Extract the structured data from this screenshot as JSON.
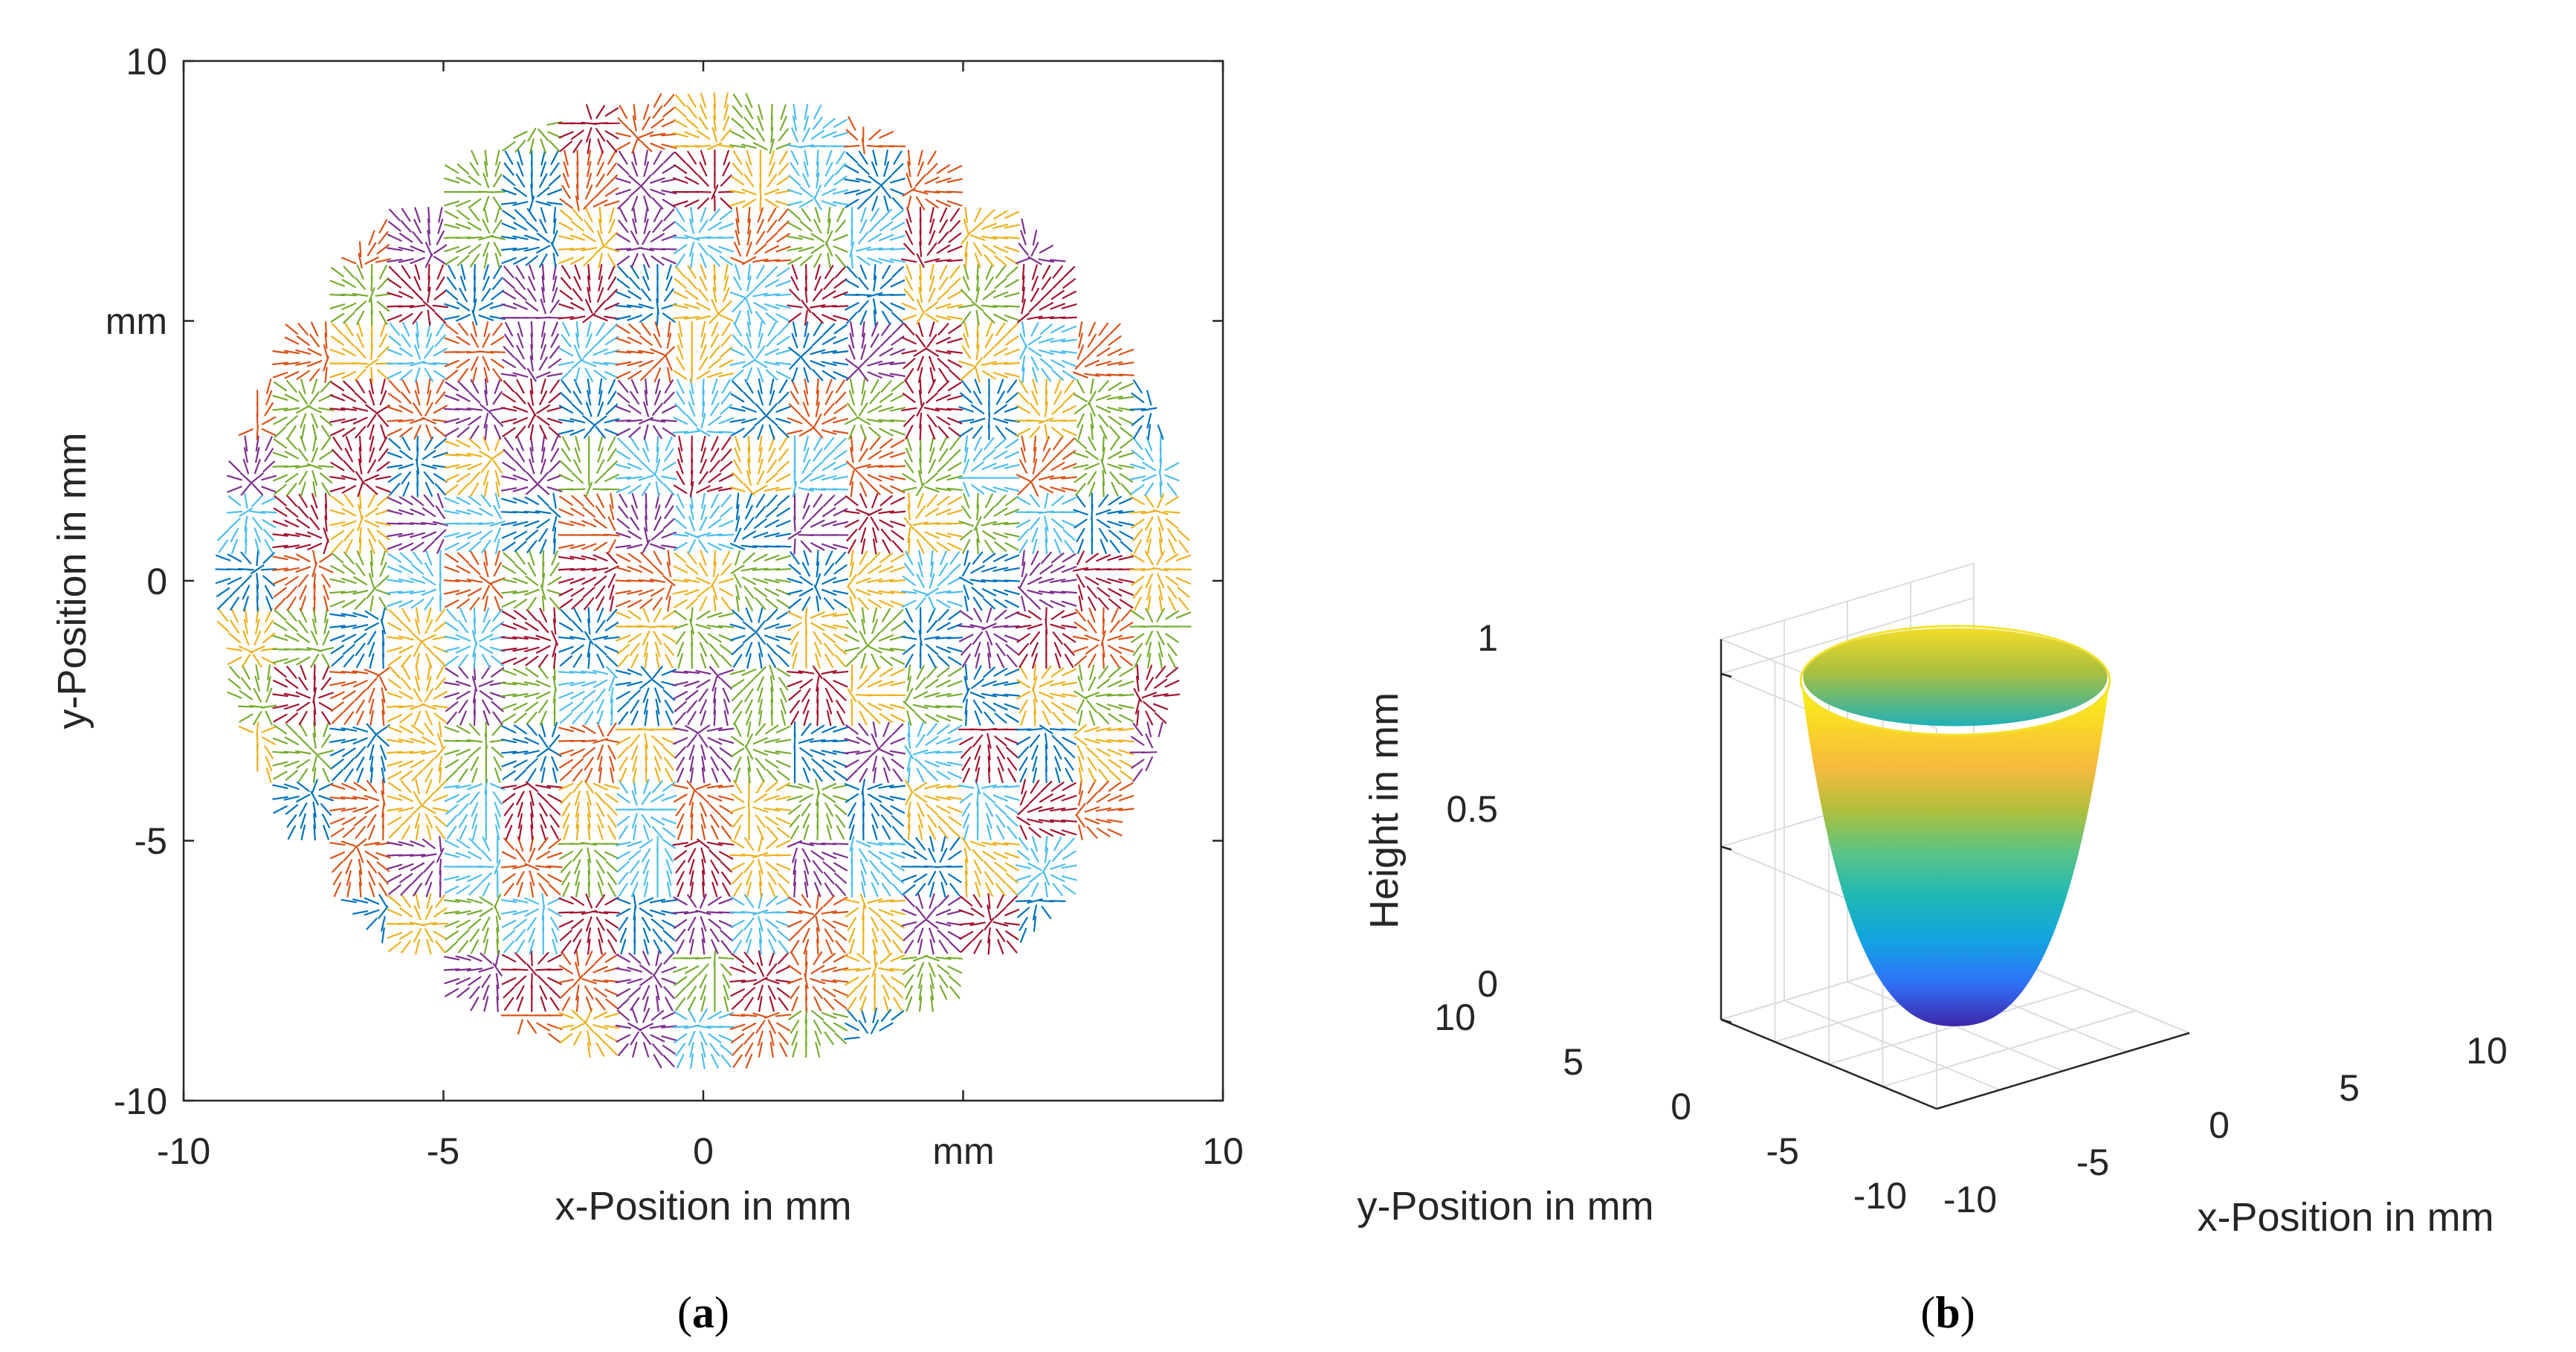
{
  "chart_data": [
    {
      "panel": "(a)",
      "type": "quiver",
      "title": "",
      "xlabel": "x-Position in mm",
      "ylabel": "y-Position in mm",
      "xlim": [
        -10,
        10
      ],
      "ylim": [
        -10,
        10
      ],
      "xticks": [
        -10,
        -5,
        0,
        5,
        10
      ],
      "xtick_labels": [
        "-10",
        "-5",
        "0",
        "mm",
        "10"
      ],
      "yticks": [
        -10,
        -5,
        0,
        5,
        10
      ],
      "ytick_labels": [
        "-10",
        "-5",
        "0",
        "mm",
        "10"
      ],
      "aperture_radius": 9.3,
      "patch_size": 1.1,
      "series_colors": [
        "#0072BD",
        "#D95319",
        "#EDB120",
        "#7E2F8E",
        "#77AC30",
        "#4DBEEE",
        "#A2142F"
      ],
      "grid": false
    },
    {
      "panel": "(b)",
      "type": "surface",
      "title": "",
      "xlabel": "x-Position in mm",
      "ylabel": "y-Position in mm",
      "zlabel": "Height in mm",
      "xlim": [
        -10,
        10
      ],
      "ylim": [
        -10,
        10
      ],
      "zlim": [
        0,
        1.1
      ],
      "xticks": [
        -10,
        -5,
        0,
        5,
        10
      ],
      "xtick_labels": [
        "-10",
        "-5",
        "0",
        "5",
        "10"
      ],
      "yticks": [
        -10,
        -5,
        0,
        5,
        10
      ],
      "ytick_labels": [
        "-10",
        "-5",
        "0",
        "5",
        "10"
      ],
      "zticks": [
        0,
        0.5,
        1
      ],
      "ztick_labels": [
        "0",
        "0.5",
        "1"
      ],
      "surface": {
        "function": "z = (x^2 + y^2) / r^2",
        "r_max": 9.3,
        "z_max": 1.0
      },
      "colormap": [
        "#3e26a8",
        "#2f72f8",
        "#12a4e0",
        "#1fb8b6",
        "#59c486",
        "#b0bf3c",
        "#f8ba3e",
        "#f9d826",
        "#f9f915"
      ],
      "grid": true
    }
  ],
  "captions": {
    "a": "a",
    "b": "b"
  }
}
